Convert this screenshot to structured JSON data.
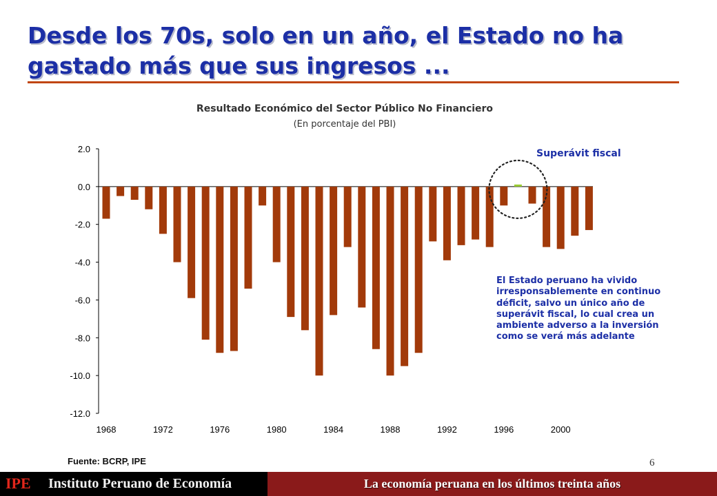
{
  "slide": {
    "title": "Desde los 70s, solo en un año, el Estado no ha gastado más que sus ingresos ...",
    "source": "Fuente: BCRP, IPE",
    "page_number": "6",
    "accent_color": "#c0450e",
    "title_color": "#1c2fa6"
  },
  "footer": {
    "logo": "IPE",
    "institute": "Instituto Peruano de Economía",
    "tagline": "La economía peruana en los últimos treinta años"
  },
  "annotations": {
    "surplus_label": "Superávit fiscal",
    "body": "El Estado peruano ha vivido irresponsablemente en continuo déficit, salvo un único año de superávit fiscal, lo cual crea un ambiente adverso a la inversión como se verá más adelante"
  },
  "chart_data": {
    "type": "bar",
    "title": "Resultado Económico del Sector Público No Financiero",
    "subtitle": "(En porcentaje del PBI)",
    "xlabel": "",
    "ylabel": "",
    "ylim": [
      -12,
      2
    ],
    "yticks": [
      "2.0",
      "0.0",
      "-2.0",
      "-4.0",
      "-6.0",
      "-8.0",
      "-10.0",
      "-12.0"
    ],
    "ytick_values": [
      2,
      0,
      -2,
      -4,
      -6,
      -8,
      -10,
      -12
    ],
    "xtick_labels": [
      "1968",
      "1972",
      "1976",
      "1980",
      "1984",
      "1988",
      "1992",
      "1996",
      "2000"
    ],
    "xtick_years": [
      1968,
      1972,
      1976,
      1980,
      1984,
      1988,
      1992,
      1996,
      2000
    ],
    "categories": [
      1968,
      1969,
      1970,
      1971,
      1972,
      1973,
      1974,
      1975,
      1976,
      1977,
      1978,
      1979,
      1980,
      1981,
      1982,
      1983,
      1984,
      1985,
      1986,
      1987,
      1988,
      1989,
      1990,
      1991,
      1992,
      1993,
      1994,
      1995,
      1996,
      1997,
      1998,
      1999,
      2000,
      2001,
      2002
    ],
    "values": [
      -1.7,
      -0.5,
      -0.7,
      -1.2,
      -2.5,
      -4.0,
      -5.9,
      -8.1,
      -8.8,
      -8.7,
      -5.4,
      -1.0,
      -4.0,
      -6.9,
      -7.6,
      -10.0,
      -6.8,
      -3.2,
      -6.4,
      -8.6,
      -10.0,
      -9.5,
      -8.8,
      -2.9,
      -3.9,
      -3.1,
      -2.8,
      -3.2,
      -1.0,
      0.1,
      -0.9,
      -3.2,
      -3.3,
      -2.6,
      -2.3
    ],
    "grid": false,
    "legend": "none",
    "bar_color": "#a23a0a",
    "surplus_color": "#9acd32"
  }
}
